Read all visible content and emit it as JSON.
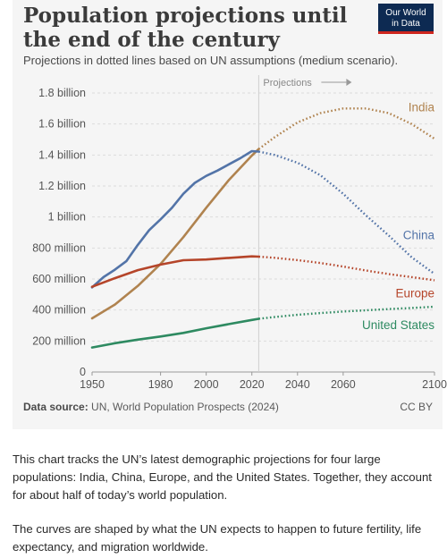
{
  "header": {
    "title": "Population projections until the end of the century",
    "subtitle": "Projections in dotted lines based on UN assumptions (medium scenario).",
    "logo_line1": "Our World",
    "logo_line2": "in Data"
  },
  "footer": {
    "source_label": "Data source:",
    "source_text": "UN, World Population Prospects (2024)",
    "license": "CC BY"
  },
  "description": {
    "p1": "This chart tracks the UN’s latest demographic projections for four large populations: India, China, Europe, and the United States. Together, they account for about half of today’s world population.",
    "p2": "The curves are shaped by what the UN expects to happen to future fertility, life expectancy, and migration worldwide."
  },
  "colors": {
    "India": "#b0834f",
    "China": "#5374a8",
    "Europe": "#b5452a",
    "United States": "#2e8a61",
    "grid": "#dcdcdc",
    "axis_text": "#555555"
  },
  "chart_data": {
    "type": "line",
    "title": "Population projections until the end of the century",
    "subtitle": "Projections in dotted lines based on UN assumptions (medium scenario).",
    "annotation": "Projections",
    "projection_start": 2023,
    "xlim": [
      1950,
      2100
    ],
    "ylim": [
      0,
      1800000000
    ],
    "x_ticks": [
      1950,
      1980,
      2000,
      2020,
      2040,
      2060,
      2100
    ],
    "y_ticks": [
      0,
      200000000,
      400000000,
      600000000,
      800000000,
      1000000000,
      1200000000,
      1400000000,
      1600000000,
      1800000000
    ],
    "y_tick_labels": [
      "0",
      "200 million",
      "400 million",
      "600 million",
      "800 million",
      "1 billion",
      "1.2 billion",
      "1.4 billion",
      "1.6 billion",
      "1.8 billion"
    ],
    "grid": true,
    "legend": "labels at line ends",
    "series": [
      {
        "name": "India",
        "x": [
          1950,
          1960,
          1970,
          1980,
          1990,
          2000,
          2010,
          2020,
          2023,
          2030,
          2040,
          2050,
          2060,
          2070,
          2080,
          2090,
          2100
        ],
        "y": [
          346000000,
          435000000,
          555000000,
          697000000,
          870000000,
          1060000000,
          1240000000,
          1396000000,
          1438000000,
          1515000000,
          1610000000,
          1670000000,
          1700000000,
          1700000000,
          1670000000,
          1600000000,
          1505000000
        ]
      },
      {
        "name": "China",
        "x": [
          1950,
          1955,
          1960,
          1965,
          1970,
          1975,
          1980,
          1985,
          1990,
          1995,
          2000,
          2005,
          2010,
          2015,
          2020,
          2023,
          2030,
          2040,
          2050,
          2060,
          2070,
          2080,
          2090,
          2100
        ],
        "y": [
          546000000,
          612000000,
          660000000,
          715000000,
          820000000,
          915000000,
          985000000,
          1060000000,
          1150000000,
          1220000000,
          1265000000,
          1300000000,
          1340000000,
          1380000000,
          1425000000,
          1422000000,
          1400000000,
          1350000000,
          1270000000,
          1150000000,
          1010000000,
          880000000,
          740000000,
          633000000
        ]
      },
      {
        "name": "Europe",
        "x": [
          1950,
          1960,
          1970,
          1980,
          1990,
          2000,
          2010,
          2020,
          2023,
          2030,
          2040,
          2050,
          2060,
          2070,
          2080,
          2090,
          2100
        ],
        "y": [
          550000000,
          605000000,
          657000000,
          693000000,
          721000000,
          726000000,
          736000000,
          746000000,
          744000000,
          737000000,
          722000000,
          703000000,
          680000000,
          655000000,
          632000000,
          612000000,
          592000000
        ]
      },
      {
        "name": "United States",
        "x": [
          1950,
          1960,
          1970,
          1980,
          1990,
          2000,
          2010,
          2020,
          2023,
          2030,
          2040,
          2050,
          2060,
          2070,
          2080,
          2090,
          2100
        ],
        "y": [
          158000000,
          186000000,
          209000000,
          229000000,
          252000000,
          282000000,
          309000000,
          336000000,
          343000000,
          355000000,
          369000000,
          380000000,
          390000000,
          398000000,
          406000000,
          413000000,
          421000000
        ]
      }
    ]
  }
}
